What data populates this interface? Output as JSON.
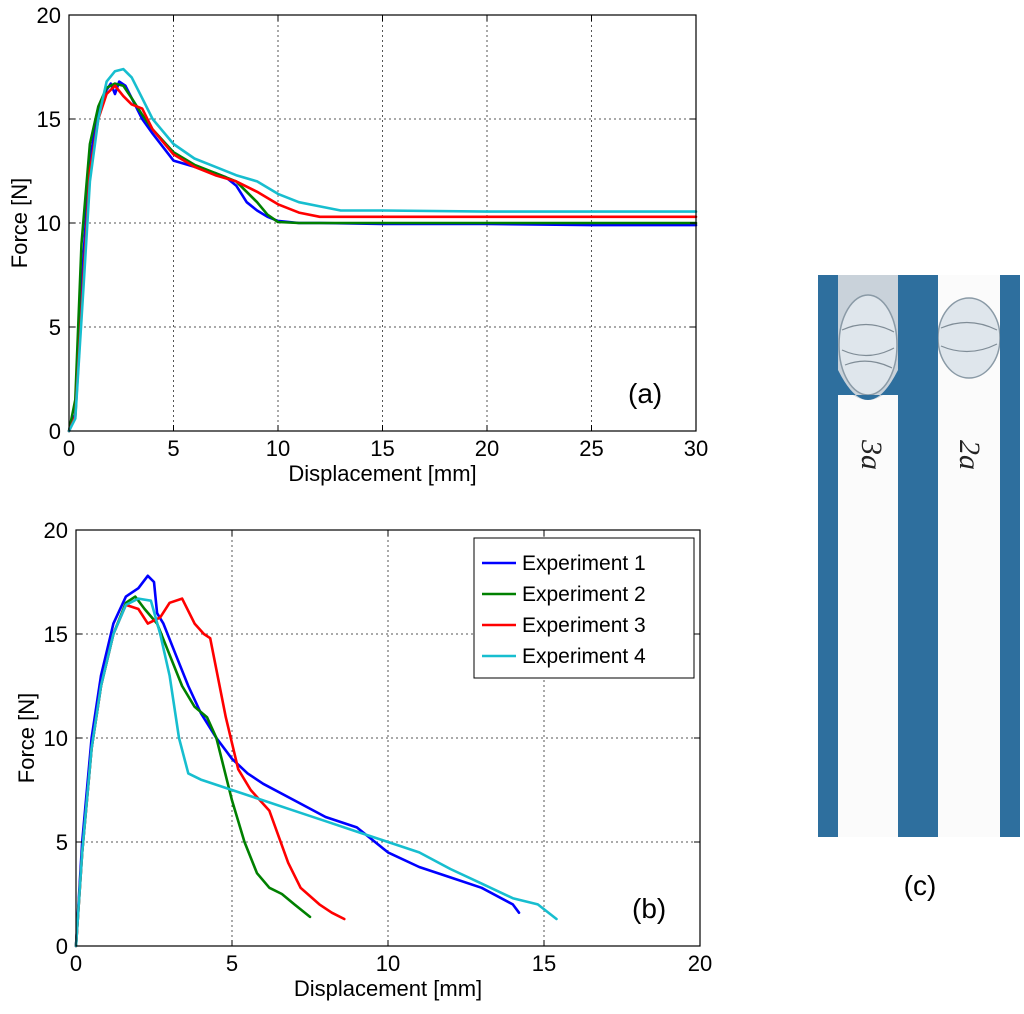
{
  "chart_data": [
    {
      "type": "line",
      "panel_label": "(a)",
      "xlabel": "Displacement [mm]",
      "ylabel": "Force [N]",
      "xlim": [
        0,
        30
      ],
      "ylim": [
        0,
        20
      ],
      "xticks": [
        0,
        5,
        10,
        15,
        20,
        25,
        30
      ],
      "yticks": [
        0,
        5,
        10,
        15,
        20
      ],
      "grid": true,
      "series": [
        {
          "name": "Experiment 1",
          "color": "#0000ff",
          "x": [
            0,
            0.3,
            0.7,
            1.0,
            1.4,
            1.8,
            2.0,
            2.2,
            2.4,
            2.7,
            3.0,
            3.5,
            4.0,
            5.0,
            6.0,
            7.0,
            7.5,
            8.0,
            8.5,
            9.0,
            9.5,
            10.0,
            11.0,
            12.0,
            15.0,
            20.0,
            25.0,
            30.0
          ],
          "y": [
            0,
            0.8,
            8.5,
            13.0,
            15.5,
            16.4,
            16.7,
            16.2,
            16.8,
            16.6,
            16.0,
            15.0,
            14.3,
            13.0,
            12.7,
            12.4,
            12.2,
            11.8,
            11.0,
            10.6,
            10.3,
            10.1,
            10.0,
            10.0,
            9.95,
            9.95,
            9.9,
            9.9
          ]
        },
        {
          "name": "Experiment 2",
          "color": "#008000",
          "x": [
            0,
            0.3,
            0.6,
            1.0,
            1.4,
            1.8,
            2.2,
            2.6,
            3.0,
            3.5,
            4.0,
            5.0,
            6.0,
            7.0,
            8.0,
            9.0,
            9.5,
            10.0,
            11.0,
            15.0,
            20.0,
            30.0
          ],
          "y": [
            0,
            1.5,
            9.0,
            13.8,
            15.6,
            16.5,
            16.7,
            16.6,
            16.0,
            15.2,
            14.5,
            13.4,
            12.8,
            12.4,
            12.0,
            11.0,
            10.4,
            10.05,
            10.0,
            10.0,
            10.0,
            10.0
          ]
        },
        {
          "name": "Experiment 3",
          "color": "#ff0000",
          "x": [
            0,
            0.3,
            0.7,
            1.0,
            1.4,
            1.8,
            2.2,
            2.6,
            3.0,
            3.5,
            4.0,
            5.0,
            6.0,
            7.0,
            8.0,
            9.0,
            10.0,
            11.0,
            12.0,
            15.0,
            20.0,
            30.0
          ],
          "y": [
            0,
            0.7,
            7.5,
            12.5,
            15.0,
            16.2,
            16.6,
            16.1,
            15.7,
            15.5,
            14.5,
            13.3,
            12.7,
            12.3,
            12.0,
            11.5,
            10.9,
            10.5,
            10.3,
            10.3,
            10.3,
            10.3
          ]
        },
        {
          "name": "Experiment 4",
          "color": "#17becf",
          "x": [
            0,
            0.3,
            0.7,
            1.0,
            1.4,
            1.8,
            2.2,
            2.6,
            3.0,
            3.5,
            4.0,
            5.0,
            6.0,
            7.0,
            8.0,
            9.0,
            10.0,
            11.0,
            12.0,
            13.0,
            15.0,
            20.0,
            30.0
          ],
          "y": [
            0,
            0.6,
            7.0,
            12.0,
            15.0,
            16.8,
            17.3,
            17.4,
            17.0,
            16.0,
            15.0,
            13.8,
            13.1,
            12.7,
            12.3,
            12.0,
            11.4,
            11.0,
            10.8,
            10.6,
            10.6,
            10.55,
            10.55
          ]
        }
      ]
    },
    {
      "type": "line",
      "panel_label": "(b)",
      "xlabel": "Displacement [mm]",
      "ylabel": "Force [N]",
      "xlim": [
        0,
        20
      ],
      "ylim": [
        0,
        20
      ],
      "xticks": [
        0,
        5,
        10,
        15,
        20
      ],
      "yticks": [
        0,
        5,
        10,
        15,
        20
      ],
      "grid": true,
      "legend": "top-right",
      "series": [
        {
          "name": "Experiment 1",
          "color": "#0000ff",
          "x": [
            0,
            0.2,
            0.5,
            0.8,
            1.2,
            1.6,
            2.0,
            2.3,
            2.5,
            2.6,
            2.8,
            3.2,
            3.6,
            4.0,
            4.5,
            5.0,
            5.5,
            6.0,
            7.0,
            8.0,
            9.0,
            10.0,
            11.0,
            12.0,
            13.0,
            14.0,
            14.2
          ],
          "y": [
            0,
            5.0,
            10.0,
            13.0,
            15.5,
            16.8,
            17.2,
            17.8,
            17.5,
            16.0,
            15.5,
            14.0,
            12.5,
            11.2,
            10.0,
            9.0,
            8.3,
            7.8,
            7.0,
            6.2,
            5.7,
            4.5,
            3.8,
            3.3,
            2.8,
            2.0,
            1.6
          ]
        },
        {
          "name": "Experiment 2",
          "color": "#008000",
          "x": [
            0,
            0.2,
            0.5,
            0.8,
            1.2,
            1.6,
            1.9,
            2.2,
            2.6,
            3.0,
            3.4,
            3.8,
            4.2,
            4.5,
            5.0,
            5.4,
            5.8,
            6.2,
            6.6,
            7.0,
            7.5
          ],
          "y": [
            0,
            4.5,
            9.5,
            12.5,
            15.0,
            16.5,
            16.8,
            16.2,
            15.5,
            14.0,
            12.5,
            11.5,
            11.0,
            10.0,
            7.0,
            5.0,
            3.5,
            2.8,
            2.5,
            2.0,
            1.4
          ]
        },
        {
          "name": "Experiment 3",
          "color": "#ff0000",
          "x": [
            0,
            0.2,
            0.5,
            0.8,
            1.2,
            1.6,
            2.0,
            2.3,
            2.7,
            3.0,
            3.4,
            3.8,
            4.1,
            4.3,
            4.8,
            5.2,
            5.6,
            6.2,
            6.8,
            7.2,
            7.8,
            8.2,
            8.6
          ],
          "y": [
            0,
            4.5,
            9.5,
            12.5,
            15.0,
            16.4,
            16.2,
            15.5,
            15.8,
            16.5,
            16.7,
            15.5,
            15.0,
            14.8,
            11.0,
            8.5,
            7.5,
            6.5,
            4.0,
            2.8,
            2.0,
            1.6,
            1.3
          ]
        },
        {
          "name": "Experiment 4",
          "color": "#17becf",
          "x": [
            0,
            0.2,
            0.5,
            0.8,
            1.2,
            1.6,
            2.0,
            2.4,
            2.7,
            3.0,
            3.3,
            3.6,
            4.0,
            5.0,
            6.0,
            7.0,
            8.0,
            9.0,
            10.0,
            11.0,
            12.0,
            13.0,
            14.0,
            14.8,
            15.4
          ],
          "y": [
            0,
            4.5,
            9.5,
            12.5,
            15.0,
            16.4,
            16.7,
            16.6,
            15.0,
            13.0,
            10.0,
            8.3,
            8.0,
            7.5,
            7.0,
            6.5,
            6.0,
            5.5,
            5.0,
            4.5,
            3.7,
            3.0,
            2.3,
            2.0,
            1.3
          ]
        }
      ]
    }
  ],
  "photo": {
    "panel_label": "(c)",
    "specimen_labels": [
      "3a",
      "2a"
    ],
    "strip_color": "#2e6f9e"
  }
}
